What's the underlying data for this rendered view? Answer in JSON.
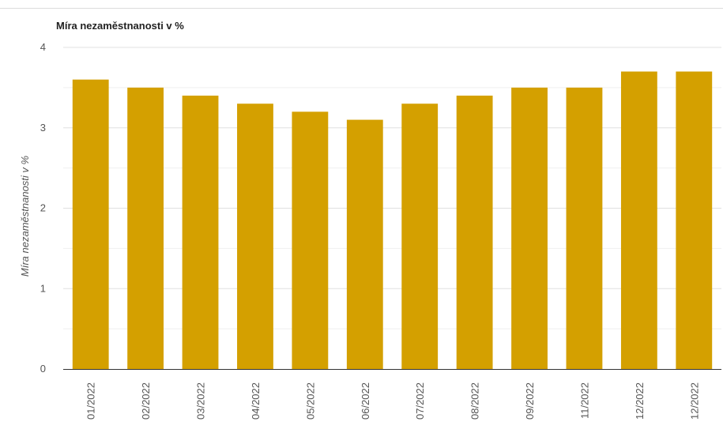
{
  "chart_data": {
    "type": "bar",
    "title": "Míra nezaměstnanosti v %",
    "xlabel": "",
    "ylabel": "Míra nezaměstnanosti v %",
    "categories": [
      "01/2022",
      "02/2022",
      "03/2022",
      "04/2022",
      "05/2022",
      "06/2022",
      "07/2022",
      "08/2022",
      "09/2022",
      "11/2022",
      "12/2022",
      "12/2022"
    ],
    "values": [
      3.6,
      3.5,
      3.4,
      3.3,
      3.2,
      3.1,
      3.3,
      3.4,
      3.5,
      3.5,
      3.7,
      3.7
    ],
    "ylim": [
      0,
      4
    ],
    "yticks": [
      0,
      1,
      2,
      3,
      4
    ],
    "grid": true,
    "legend": "none",
    "bar_color": "#d4a000",
    "grid_color": "#e6e6e6",
    "axis_color": "#333333"
  }
}
